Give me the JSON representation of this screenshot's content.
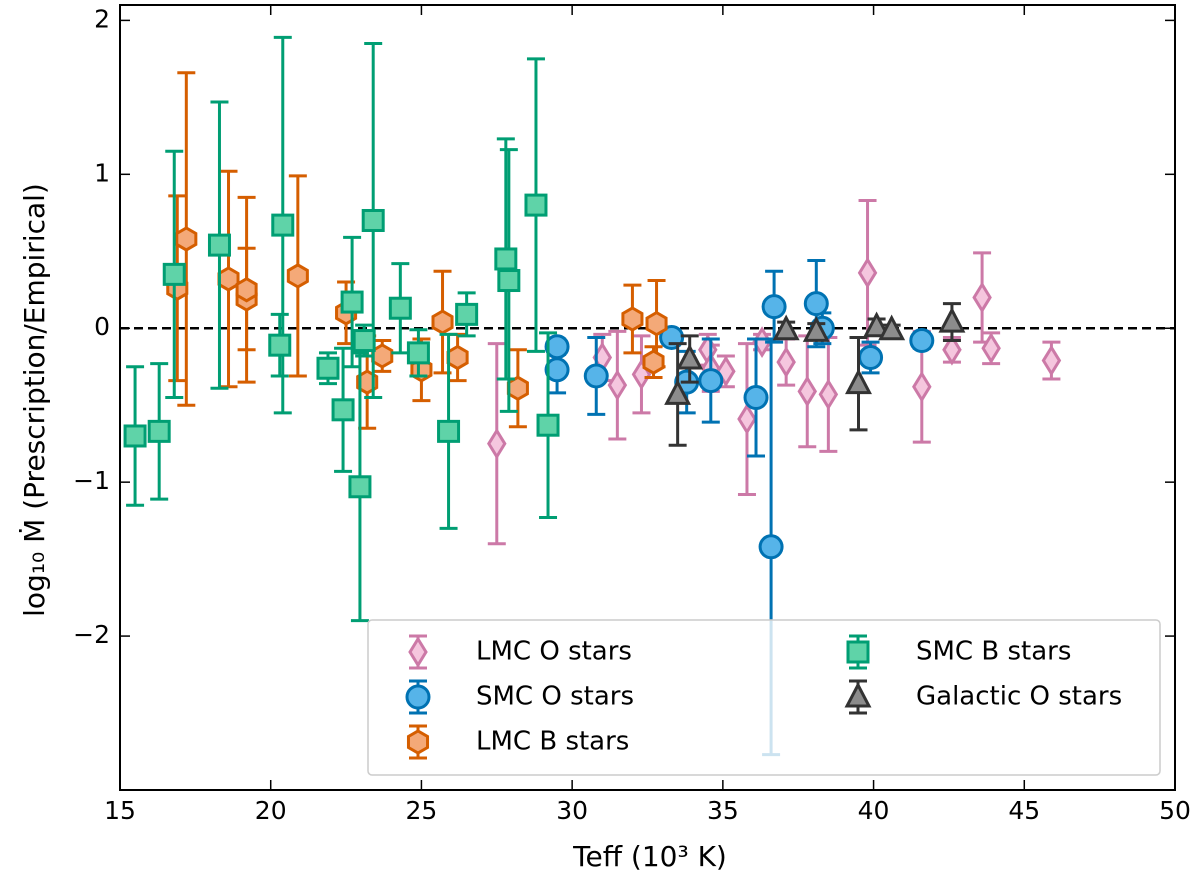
{
  "chart_data": {
    "type": "errorbar",
    "xlabel": "Teff (10³ K)",
    "ylabel": "log₁₀ Ṁ (Prescription/Empirical)",
    "xlim": [
      15,
      50
    ],
    "xticks": [
      15,
      20,
      25,
      30,
      35,
      40,
      45,
      50
    ],
    "ylim": [
      -3,
      2.1
    ],
    "yticks": [
      {
        "value": -2,
        "label": "−2"
      },
      {
        "value": -1,
        "label": "−1"
      },
      0,
      1,
      2
    ],
    "hline": 0,
    "legend": "lower right",
    "series": [
      {
        "name": "LMC O stars",
        "color": "#cc79a7",
        "facecolor": "#f5c6de",
        "marker": "diamond",
        "x": [
          27.5,
          31.0,
          31.5,
          32.3,
          34.5,
          34.6,
          35.1,
          35.8,
          36.3,
          37.1,
          37.8,
          38.5,
          39.8,
          41.6,
          42.6,
          43.6,
          43.9,
          45.9
        ],
        "values": [
          -0.75,
          -0.19,
          -0.37,
          -0.3,
          -0.14,
          -0.26,
          -0.28,
          -0.59,
          -0.09,
          -0.22,
          -0.41,
          -0.43,
          0.36,
          -0.38,
          -0.14,
          0.2,
          -0.13,
          -0.21
        ],
        "errors": [
          0.65,
          0.15,
          0.35,
          0.25,
          0.1,
          0.15,
          0.1,
          0.49,
          0.05,
          0.15,
          0.36,
          0.37,
          0.47,
          0.36,
          0.08,
          0.29,
          0.1,
          0.12
        ]
      },
      {
        "name": "SMC O stars",
        "color": "#0072b2",
        "facecolor": "#56b4e9",
        "marker": "circle",
        "x": [
          29.5,
          29.5,
          30.8,
          33.3,
          33.8,
          34.6,
          36.1,
          36.6,
          36.7,
          38.1,
          38.3,
          39.9,
          41.6
        ],
        "values": [
          -0.12,
          -0.27,
          -0.31,
          -0.06,
          -0.35,
          -0.34,
          -0.45,
          -1.42,
          0.14,
          0.16,
          0.0,
          -0.19,
          -0.08
        ],
        "errors": [
          0.05,
          0.15,
          0.25,
          0.05,
          0.2,
          0.27,
          0.38,
          1.35,
          0.23,
          0.28,
          0.1,
          0.1,
          0.05
        ]
      },
      {
        "name": "LMC B stars",
        "color": "#d55e00",
        "facecolor": "#f4a978",
        "marker": "hexagon",
        "x": [
          16.9,
          17.2,
          18.6,
          19.2,
          19.2,
          20.9,
          22.5,
          23.2,
          23.7,
          25.0,
          25.7,
          26.2,
          28.2,
          32.0,
          32.8,
          32.7
        ],
        "values": [
          0.26,
          0.58,
          0.32,
          0.19,
          0.25,
          0.34,
          0.1,
          -0.35,
          -0.18,
          -0.27,
          0.04,
          -0.19,
          -0.39,
          0.06,
          0.03,
          -0.22
        ],
        "errors": [
          0.6,
          1.08,
          0.7,
          0.33,
          0.6,
          0.65,
          0.2,
          0.3,
          0.1,
          0.2,
          0.33,
          0.15,
          0.25,
          0.22,
          0.28,
          0.1
        ]
      },
      {
        "name": "SMC B stars",
        "color": "#009e73",
        "facecolor": "#5fd3a8",
        "marker": "square",
        "x": [
          15.5,
          16.3,
          16.8,
          18.3,
          20.3,
          20.4,
          21.9,
          22.4,
          22.7,
          22.96,
          23.1,
          23.4,
          24.3,
          24.9,
          25.9,
          26.5,
          27.8,
          27.9,
          28.8,
          29.2
        ],
        "values": [
          -0.7,
          -0.67,
          0.35,
          0.54,
          -0.11,
          0.67,
          -0.26,
          -0.53,
          0.17,
          -1.03,
          -0.08,
          0.7,
          0.13,
          -0.16,
          -0.67,
          0.09,
          0.45,
          0.31,
          0.8,
          -0.63
        ],
        "errors": [
          0.45,
          0.44,
          0.8,
          0.93,
          0.2,
          1.22,
          0.1,
          0.4,
          0.42,
          0.87,
          0.1,
          1.15,
          0.29,
          0.15,
          0.63,
          0.14,
          0.78,
          0.85,
          0.95,
          0.6
        ]
      },
      {
        "name": "Galactic O stars",
        "color": "#333333",
        "facecolor": "#8c8c8c",
        "marker": "triangle",
        "x": [
          33.5,
          33.9,
          37.1,
          38.1,
          39.5,
          40.1,
          40.6,
          42.6
        ],
        "values": [
          -0.43,
          -0.2,
          -0.01,
          -0.02,
          -0.36,
          0.01,
          -0.01,
          0.04
        ],
        "errors": [
          0.33,
          0.15,
          0.05,
          0.05,
          0.3,
          0.05,
          0.03,
          0.12
        ]
      }
    ]
  }
}
